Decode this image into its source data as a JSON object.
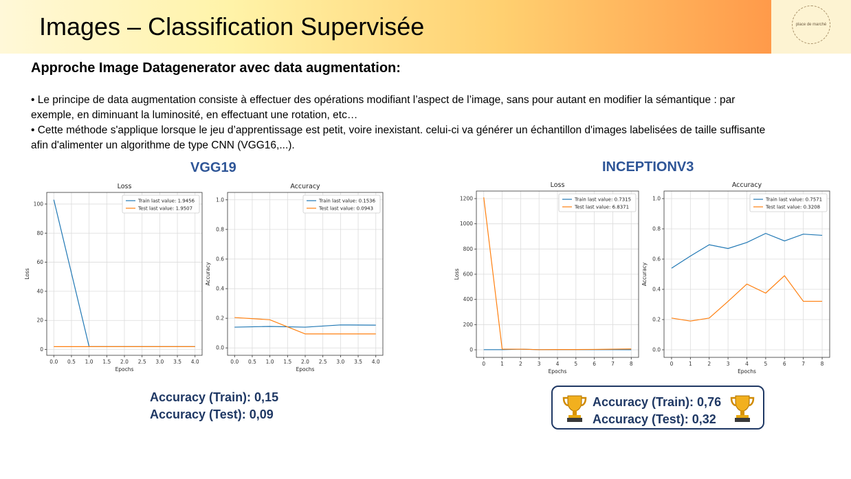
{
  "header": {
    "title": "Images – Classification Supervisée",
    "logo_text": "place de marché"
  },
  "subtitle": "Approche Image Datagenerator avec data augmentation:",
  "bullets": [
    "• Le principe de data augmentation consiste à effectuer des opérations modifiant l’aspect de l’image, sans pour autant en modifier la sémantique : par exemple, en diminuant la luminosité, en effectuant une rotation, etc…",
    "• Cette méthode s'applique lorsque le jeu d’apprentissage est petit, voire inexistant. celui-ci va générer un échantillon d'images labelisées de taille suffisante afin d'alimenter un algorithme de type CNN (VGG16,...)."
  ],
  "models": {
    "vgg19": {
      "title": "VGG19",
      "accuracy_train": "Accuracy (Train): 0,15",
      "accuracy_test": "Accuracy (Test): 0,09"
    },
    "inception": {
      "title": "INCEPTIONV3",
      "accuracy_train": "Accuracy (Train): 0,76",
      "accuracy_test": "Accuracy (Test): 0,32",
      "icon": "trophy-icon"
    }
  },
  "colors": {
    "train": "#1f77b4",
    "test": "#ff7f0e",
    "title_blue": "#2e5597",
    "accuracy_navy": "#1f3864"
  },
  "chart_data": [
    {
      "type": "line",
      "title": "Loss",
      "xlabel": "Epochs",
      "ylabel": "Loss",
      "x": [
        0,
        1,
        2,
        3,
        4
      ],
      "series": [
        {
          "name": "Train last value: 1.9456",
          "values": [
            103,
            1.95,
            1.95,
            1.95,
            1.95
          ]
        },
        {
          "name": "Test last value: 1.9507",
          "values": [
            1.95,
            1.95,
            1.95,
            1.95,
            1.95
          ]
        }
      ],
      "xlim": [
        -0.2,
        4.2
      ],
      "ylim": [
        -4,
        108
      ],
      "xticks": [
        "0.0",
        "0.5",
        "1.0",
        "1.5",
        "2.0",
        "2.5",
        "3.0",
        "3.5",
        "4.0"
      ],
      "yticks": [
        "0",
        "20",
        "40",
        "60",
        "80",
        "100"
      ],
      "grid": true,
      "legend": "top-right"
    },
    {
      "type": "line",
      "title": "Accuracy",
      "xlabel": "Epochs",
      "ylabel": "Accuracy",
      "x": [
        0,
        1,
        2,
        3,
        4
      ],
      "series": [
        {
          "name": "Train last value: 0.1536",
          "values": [
            0.14,
            0.145,
            0.14,
            0.155,
            0.1536
          ]
        },
        {
          "name": "Test last value: 0.0943",
          "values": [
            0.205,
            0.19,
            0.0943,
            0.0943,
            0.0943
          ]
        }
      ],
      "xlim": [
        -0.2,
        4.2
      ],
      "ylim": [
        -0.05,
        1.05
      ],
      "xticks": [
        "0.0",
        "0.5",
        "1.0",
        "1.5",
        "2.0",
        "2.5",
        "3.0",
        "3.5",
        "4.0"
      ],
      "yticks": [
        "0.0",
        "0.2",
        "0.4",
        "0.6",
        "0.8",
        "1.0"
      ],
      "grid": true,
      "legend": "top-right"
    },
    {
      "type": "line",
      "title": "Loss",
      "xlabel": "Epochs",
      "ylabel": "Loss",
      "x": [
        0,
        1,
        2,
        3,
        4,
        5,
        6,
        7,
        8
      ],
      "series": [
        {
          "name": "Train last value: 0.7315",
          "values": [
            1,
            1,
            5,
            1,
            1,
            1,
            1,
            1,
            0.7315
          ]
        },
        {
          "name": "Test last value: 6.8371",
          "values": [
            1210,
            5,
            5,
            1,
            2,
            2,
            3,
            5,
            6.8371
          ]
        }
      ],
      "xlim": [
        -0.4,
        8.4
      ],
      "ylim": [
        -60,
        1260
      ],
      "xticks": [
        "0",
        "1",
        "2",
        "3",
        "4",
        "5",
        "6",
        "7",
        "8"
      ],
      "yticks": [
        "0",
        "200",
        "400",
        "600",
        "800",
        "1000",
        "1200"
      ],
      "grid": true,
      "legend": "top-right"
    },
    {
      "type": "line",
      "title": "Accuracy",
      "xlabel": "Epochs",
      "ylabel": "Accuracy",
      "x": [
        0,
        1,
        2,
        3,
        4,
        5,
        6,
        7,
        8
      ],
      "series": [
        {
          "name": "Train last value: 0.7571",
          "values": [
            0.54,
            0.62,
            0.695,
            0.67,
            0.71,
            0.77,
            0.72,
            0.765,
            0.7571
          ]
        },
        {
          "name": "Test last value: 0.3208",
          "values": [
            0.21,
            0.19,
            0.21,
            0.32,
            0.435,
            0.375,
            0.49,
            0.3208,
            0.3208
          ]
        }
      ],
      "xlim": [
        -0.4,
        8.4
      ],
      "ylim": [
        -0.05,
        1.05
      ],
      "xticks": [
        "0",
        "1",
        "2",
        "3",
        "4",
        "5",
        "6",
        "7",
        "8"
      ],
      "yticks": [
        "0.0",
        "0.2",
        "0.4",
        "0.6",
        "0.8",
        "1.0"
      ],
      "grid": true,
      "legend": "top-right"
    }
  ]
}
